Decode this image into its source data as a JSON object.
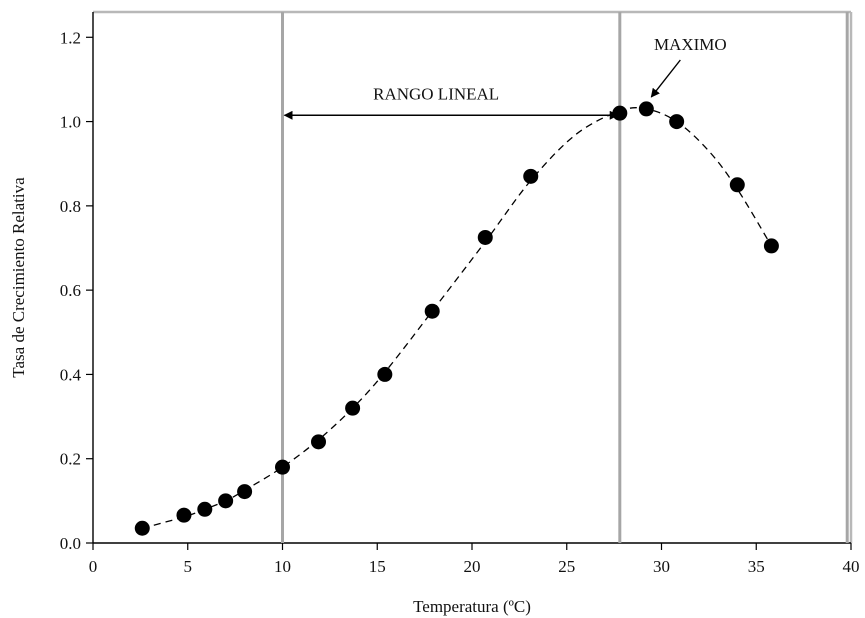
{
  "chart_data": {
    "type": "scatter",
    "title": "",
    "xlabel": "Temperatura (ºC)",
    "ylabel": "Tasa de Crecimiento Relativa",
    "xlim": [
      0,
      40
    ],
    "ylim": [
      0,
      1.26
    ],
    "xticks": [
      0,
      5,
      10,
      15,
      20,
      25,
      30,
      35,
      40
    ],
    "xtick_labels": [
      "0",
      "5",
      "10",
      "15",
      "20",
      "25",
      "30",
      "35",
      "40"
    ],
    "yticks": [
      0.0,
      0.2,
      0.4,
      0.6,
      0.8,
      1.0,
      1.2
    ],
    "ytick_labels": [
      "0.0",
      "0.2",
      "0.4",
      "0.6",
      "0.8",
      "1.0",
      "1.2"
    ],
    "grid": false,
    "series": [
      {
        "marker": "filled-circle",
        "x": [
          2.6,
          4.8,
          5.9,
          7.0,
          8.0,
          10.0,
          11.9,
          13.7,
          15.4,
          17.9,
          20.7,
          23.1,
          27.8,
          29.2,
          30.8,
          34.0,
          35.8
        ],
        "y": [
          0.035,
          0.066,
          0.08,
          0.1,
          0.122,
          0.18,
          0.24,
          0.32,
          0.4,
          0.55,
          0.725,
          0.87,
          1.02,
          1.03,
          1.0,
          0.85,
          0.705
        ]
      }
    ],
    "fit_curve": {
      "style": "dashed",
      "x": [
        2.6,
        4.8,
        5.9,
        7.0,
        8.0,
        10.0,
        11.9,
        13.7,
        15.4,
        17.9,
        20.7,
        23.1,
        25.5,
        27.8,
        29.2,
        30.8,
        32.5,
        34.0,
        35.8
      ],
      "y": [
        0.035,
        0.062,
        0.08,
        0.1,
        0.125,
        0.18,
        0.245,
        0.32,
        0.405,
        0.55,
        0.715,
        0.86,
        0.97,
        1.025,
        1.03,
        1.0,
        0.93,
        0.84,
        0.705
      ]
    },
    "vertical_lines": [
      10,
      27.8,
      39.8
    ],
    "annotations": {
      "range_label": "RANGO LINEAL",
      "range_from": 10,
      "range_to": 27.8,
      "range_y": 1.015,
      "max_label": "MAXIMO",
      "max_point": [
        29.2,
        1.03
      ]
    }
  }
}
